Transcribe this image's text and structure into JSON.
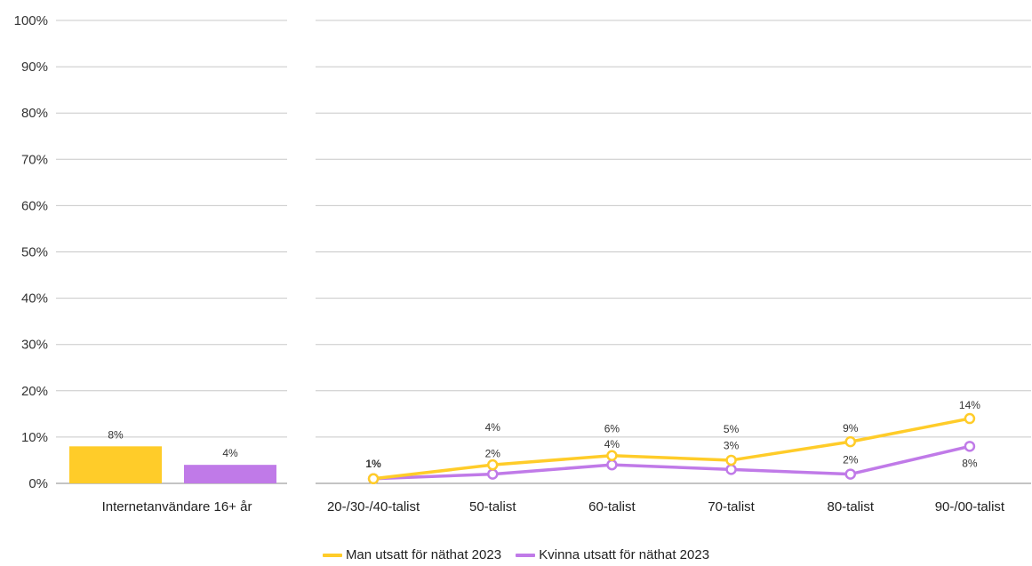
{
  "chart_data": [
    {
      "type": "bar",
      "categories": [
        "Internetanvändare 16+ år"
      ],
      "series": [
        {
          "name": "Man utsatt för näthat 2023",
          "values": [
            8
          ],
          "labels": [
            "8%"
          ],
          "color": "#FFCC29"
        },
        {
          "name": "Kvinna utsatt för näthat 2023",
          "values": [
            4
          ],
          "labels": [
            "4%"
          ],
          "color": "#C07AE8"
        }
      ],
      "ylim": [
        0,
        100
      ],
      "yticks": [
        "0%",
        "10%",
        "20%",
        "30%",
        "40%",
        "50%",
        "60%",
        "70%",
        "80%",
        "90%",
        "100%"
      ],
      "grid": true
    },
    {
      "type": "line",
      "categories": [
        "20-/30-/40-talist",
        "50-talist",
        "60-talist",
        "70-talist",
        "80-talist",
        "90-/00-talist"
      ],
      "series": [
        {
          "name": "Man utsatt för näthat 2023",
          "values": [
            1,
            4,
            6,
            5,
            9,
            14
          ],
          "labels": [
            "1%",
            "4%",
            "6%",
            "5%",
            "9%",
            "14%"
          ],
          "color": "#FFCC29"
        },
        {
          "name": "Kvinna utsatt för näthat 2023",
          "values": [
            1,
            2,
            4,
            3,
            2,
            8
          ],
          "labels": [
            "1%",
            "2%",
            "4%",
            "3%",
            "2%",
            "8%"
          ],
          "color": "#C07AE8"
        }
      ],
      "ylim": [
        0,
        100
      ],
      "grid": true
    }
  ],
  "legend": {
    "placement": "bottom-center",
    "items": [
      {
        "label": "Man utsatt för näthat 2023",
        "color": "#FFCC29"
      },
      {
        "label": "Kvinna utsatt för näthat 2023",
        "color": "#C07AE8"
      }
    ]
  }
}
